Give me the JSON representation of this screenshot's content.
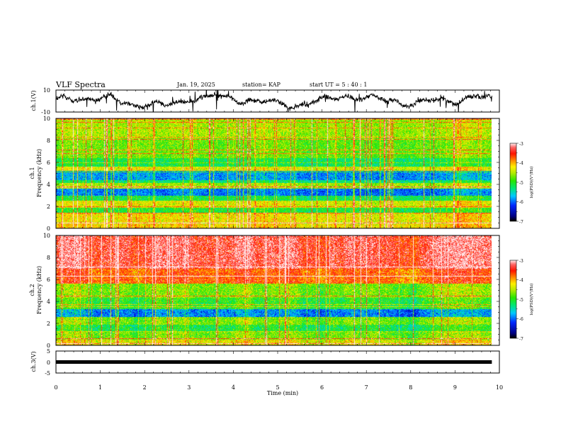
{
  "header": {
    "title": "VLF Spectra",
    "date": "Jan. 19, 2025",
    "station": "station= KAP",
    "start": "start UT =  5 : 40 : 1"
  },
  "chart_data": [
    {
      "type": "line",
      "name": "ch1-waveform",
      "ylabel": "ch.1(V)",
      "ylim": [
        -10,
        10
      ],
      "yticks": [
        "10",
        "-10"
      ],
      "xlim": [
        0,
        10
      ],
      "data_until": 9.83
    },
    {
      "type": "heatmap",
      "name": "ch1-spectrogram",
      "ylabel": "ch.1",
      "ylabel2": "Frequency (kHz)",
      "ylim": [
        0,
        10
      ],
      "yticks": [
        "0",
        "2",
        "4",
        "6",
        "8",
        "10"
      ],
      "xlim": [
        0,
        10
      ],
      "data_until": 9.83,
      "colorbar": {
        "label": "log(PSD)(V²/Hz)",
        "min": -7,
        "max": -3,
        "ticks": [
          "-3",
          "-4",
          "-5",
          "-6",
          "-7"
        ]
      },
      "band_levels_log_psd": [
        {
          "f": [
            0.0,
            0.4
          ],
          "v": -4.2
        },
        {
          "f": [
            0.4,
            1.3
          ],
          "v": -4.3
        },
        {
          "f": [
            1.3,
            1.9
          ],
          "v": -5.1
        },
        {
          "f": [
            1.9,
            2.5
          ],
          "v": -4.4
        },
        {
          "f": [
            2.5,
            3.0
          ],
          "v": -5.2
        },
        {
          "f": [
            3.0,
            3.6
          ],
          "v": -6.0
        },
        {
          "f": [
            3.6,
            4.1
          ],
          "v": -4.6
        },
        {
          "f": [
            4.1,
            4.4
          ],
          "v": -5.3
        },
        {
          "f": [
            4.4,
            5.2
          ],
          "v": -5.9
        },
        {
          "f": [
            5.2,
            5.6
          ],
          "v": -4.4
        },
        {
          "f": [
            5.6,
            6.4
          ],
          "v": -5.2
        },
        {
          "f": [
            6.4,
            8.2
          ],
          "v": -4.8
        },
        {
          "f": [
            8.2,
            10.0
          ],
          "v": -4.6
        }
      ]
    },
    {
      "type": "heatmap",
      "name": "ch2-spectrogram",
      "ylabel": "ch.2",
      "ylabel2": "Frequency (kHz)",
      "ylim": [
        0,
        10
      ],
      "yticks": [
        "0",
        "2",
        "4",
        "6",
        "8",
        "10"
      ],
      "xlim": [
        0,
        10
      ],
      "data_until": 9.83,
      "colorbar": {
        "label": "log(PSD)(V²/Hz)",
        "min": -7,
        "max": -3,
        "ticks": [
          "-3",
          "-4",
          "-5",
          "-6",
          "-7"
        ]
      },
      "band_levels_log_psd": [
        {
          "f": [
            0.0,
            0.5
          ],
          "v": -4.3
        },
        {
          "f": [
            0.5,
            1.2
          ],
          "v": -4.7
        },
        {
          "f": [
            1.2,
            1.9
          ],
          "v": -5.1
        },
        {
          "f": [
            1.9,
            2.6
          ],
          "v": -4.7
        },
        {
          "f": [
            2.6,
            3.3
          ],
          "v": -5.9
        },
        {
          "f": [
            3.3,
            4.3
          ],
          "v": -5.0
        },
        {
          "f": [
            4.3,
            5.6
          ],
          "v": -4.7
        },
        {
          "f": [
            5.6,
            7.0
          ],
          "v": -3.7
        },
        {
          "f": [
            7.0,
            10.0
          ],
          "v": -3.3
        }
      ]
    },
    {
      "type": "line",
      "name": "ch3-waveform",
      "ylabel": "ch.3(V)",
      "ylim": [
        -5,
        5
      ],
      "yticks": [
        "5",
        "0",
        "-5"
      ],
      "xlim": [
        0,
        10
      ],
      "data_until": 9.83,
      "level": 0,
      "xlabel": "Time (min)",
      "xticks": [
        "0",
        "1",
        "2",
        "3",
        "4",
        "5",
        "6",
        "7",
        "8",
        "9",
        "10"
      ]
    }
  ]
}
